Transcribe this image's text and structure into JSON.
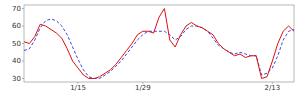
{
  "chart_data": {
    "type": "line",
    "categories": [
      null,
      null,
      null,
      null,
      null,
      null,
      null,
      null,
      null,
      null,
      "1/15",
      null,
      null,
      null,
      null,
      null,
      null,
      null,
      null,
      null,
      null,
      null,
      "1/29",
      null,
      null,
      null,
      null,
      null,
      null,
      null,
      null,
      null,
      null,
      null,
      null,
      null,
      null,
      null,
      null,
      null,
      null,
      null,
      null,
      null,
      null,
      null,
      "2/13",
      null,
      null,
      null,
      null
    ],
    "series": [
      {
        "color": "#4444dd",
        "line_style": "dashed",
        "values": [
          46,
          47,
          52,
          59,
          63,
          64,
          63,
          60,
          55,
          48,
          41,
          35,
          31,
          30,
          30,
          32,
          34,
          37,
          40,
          44,
          48,
          52,
          55,
          57,
          57,
          57,
          57,
          55,
          52,
          54,
          58,
          60,
          60,
          59,
          57,
          53,
          49,
          47,
          45,
          44,
          45,
          44,
          43,
          43,
          32,
          33,
          36,
          43,
          52,
          57,
          58
        ]
      },
      {
        "color": "#dd1111",
        "line_style": "solid",
        "values": [
          51,
          50,
          54,
          61,
          60,
          58,
          56,
          53,
          47,
          40,
          36,
          32,
          30,
          30,
          31,
          33,
          35,
          38,
          42,
          46,
          50,
          55,
          57,
          57,
          56,
          65,
          70,
          52,
          48,
          55,
          60,
          62,
          60,
          59,
          57,
          55,
          50,
          47,
          45,
          43,
          44,
          42,
          43,
          43,
          30,
          31,
          40,
          50,
          57,
          60,
          57
        ]
      }
    ],
    "ylim": [
      28,
      72
    ],
    "yticks": [
      30,
      40,
      50,
      60,
      70
    ],
    "grid": false
  }
}
